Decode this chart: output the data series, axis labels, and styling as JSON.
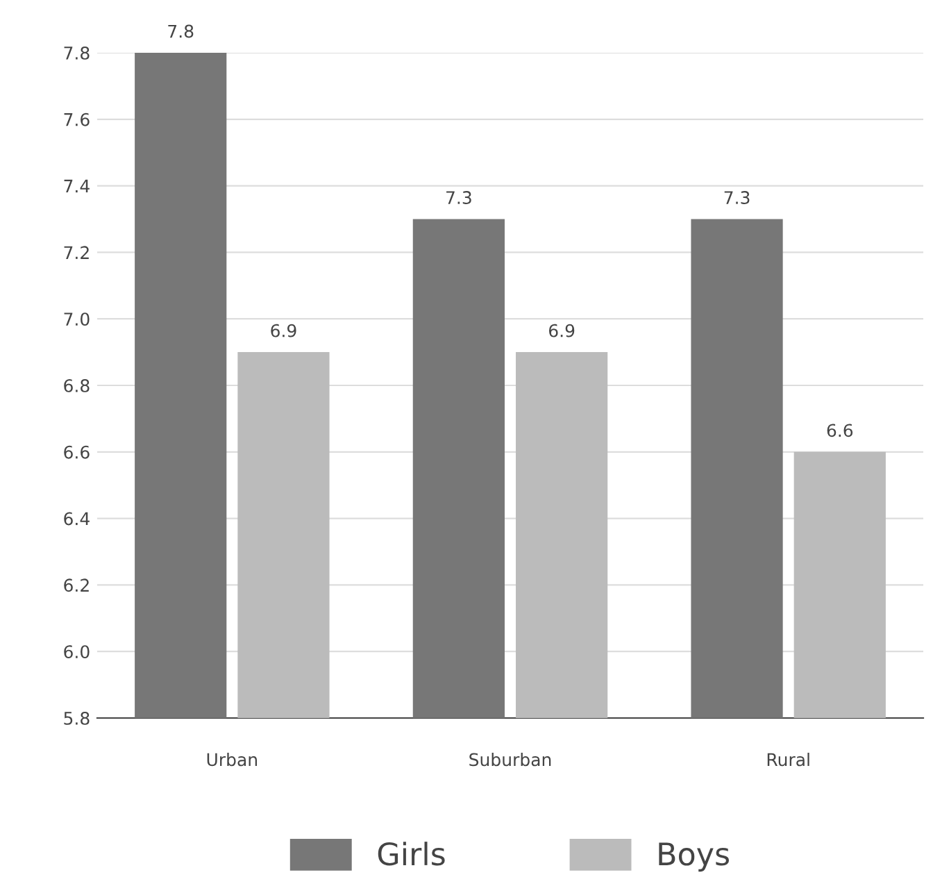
{
  "chart_data": {
    "type": "bar",
    "categories": [
      "Urban",
      "Suburban",
      "Rural"
    ],
    "series": [
      {
        "name": "Girls",
        "color": "#777777",
        "values": [
          7.8,
          7.3,
          7.3
        ]
      },
      {
        "name": "Boys",
        "color": "#bbbbbb",
        "values": [
          6.9,
          6.9,
          6.6
        ]
      }
    ],
    "ylim": [
      5.8,
      7.8
    ],
    "yticks": [
      5.8,
      {
        "value": 6.0,
        "label": "6.0"
      },
      6.2,
      6.4,
      6.6,
      6.8,
      {
        "value": 7.0,
        "label": "7.0"
      },
      7.2,
      7.4,
      7.6,
      7.8
    ],
    "grid": "y",
    "legend": "bottom",
    "data_labels": true
  }
}
